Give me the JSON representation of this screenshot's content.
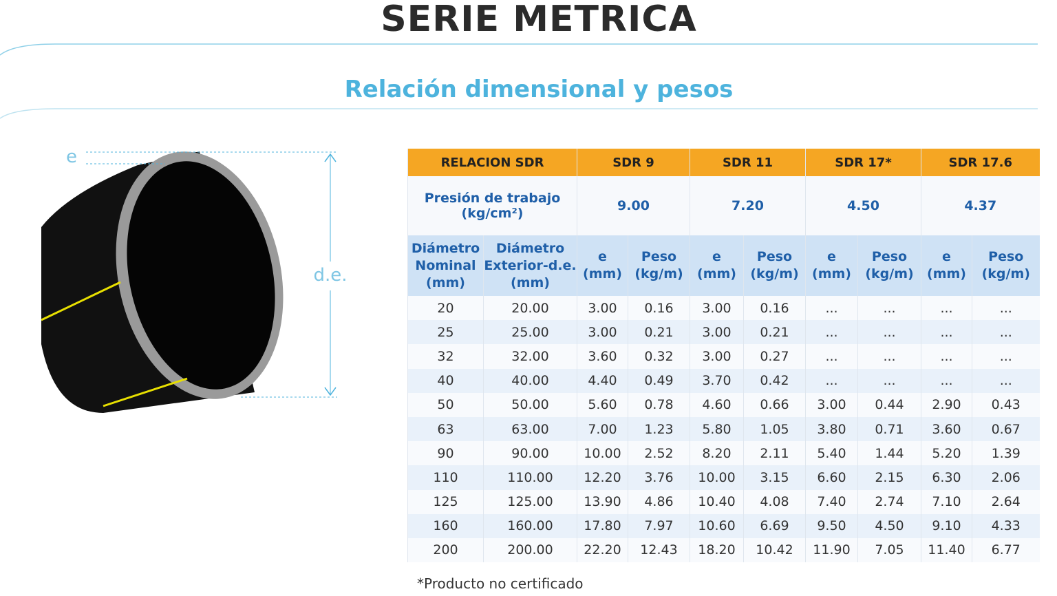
{
  "title": "SERIE METRICA",
  "subtitle": "Relación dimensional y pesos",
  "diagram": {
    "e_label": "e",
    "de_label": "d.e."
  },
  "table": {
    "header": [
      "RELACION SDR",
      "SDR 9",
      "SDR 11",
      "SDR 17*",
      "SDR 17.6"
    ],
    "pressure_label": "Presión de trabajo\n(kg/cm²)",
    "pressures": [
      "9.00",
      "7.20",
      "4.50",
      "4.37"
    ],
    "subheader": [
      "Diámetro\nNominal\n(mm)",
      "Diámetro\nExterior-d.e.\n(mm)",
      "e\n(mm)",
      "Peso\n(kg/m)",
      "e\n(mm)",
      "Peso\n(kg/m)",
      "e\n(mm)",
      "Peso\n(kg/m)",
      "e\n(mm)",
      "Peso\n(kg/m)"
    ],
    "rows": [
      [
        "20",
        "20.00",
        "3.00",
        "0.16",
        "3.00",
        "0.16",
        "...",
        "...",
        "...",
        "..."
      ],
      [
        "25",
        "25.00",
        "3.00",
        "0.21",
        "3.00",
        "0.21",
        "...",
        "...",
        "...",
        "..."
      ],
      [
        "32",
        "32.00",
        "3.60",
        "0.32",
        "3.00",
        "0.27",
        "...",
        "...",
        "...",
        "..."
      ],
      [
        "40",
        "40.00",
        "4.40",
        "0.49",
        "3.70",
        "0.42",
        "...",
        "...",
        "...",
        "..."
      ],
      [
        "50",
        "50.00",
        "5.60",
        "0.78",
        "4.60",
        "0.66",
        "3.00",
        "0.44",
        "2.90",
        "0.43"
      ],
      [
        "63",
        "63.00",
        "7.00",
        "1.23",
        "5.80",
        "1.05",
        "3.80",
        "0.71",
        "3.60",
        "0.67"
      ],
      [
        "90",
        "90.00",
        "10.00",
        "2.52",
        "8.20",
        "2.11",
        "5.40",
        "1.44",
        "5.20",
        "1.39"
      ],
      [
        "110",
        "110.00",
        "12.20",
        "3.76",
        "10.00",
        "3.15",
        "6.60",
        "2.15",
        "6.30",
        "2.06"
      ],
      [
        "125",
        "125.00",
        "13.90",
        "4.86",
        "10.40",
        "4.08",
        "7.40",
        "2.74",
        "7.10",
        "2.64"
      ],
      [
        "160",
        "160.00",
        "17.80",
        "7.97",
        "10.60",
        "6.69",
        "9.50",
        "4.50",
        "9.10",
        "4.33"
      ],
      [
        "200",
        "200.00",
        "22.20",
        "12.43",
        "18.20",
        "10.42",
        "11.90",
        "7.05",
        "11.40",
        "6.77"
      ]
    ]
  },
  "footnote": "*Producto no certificado"
}
